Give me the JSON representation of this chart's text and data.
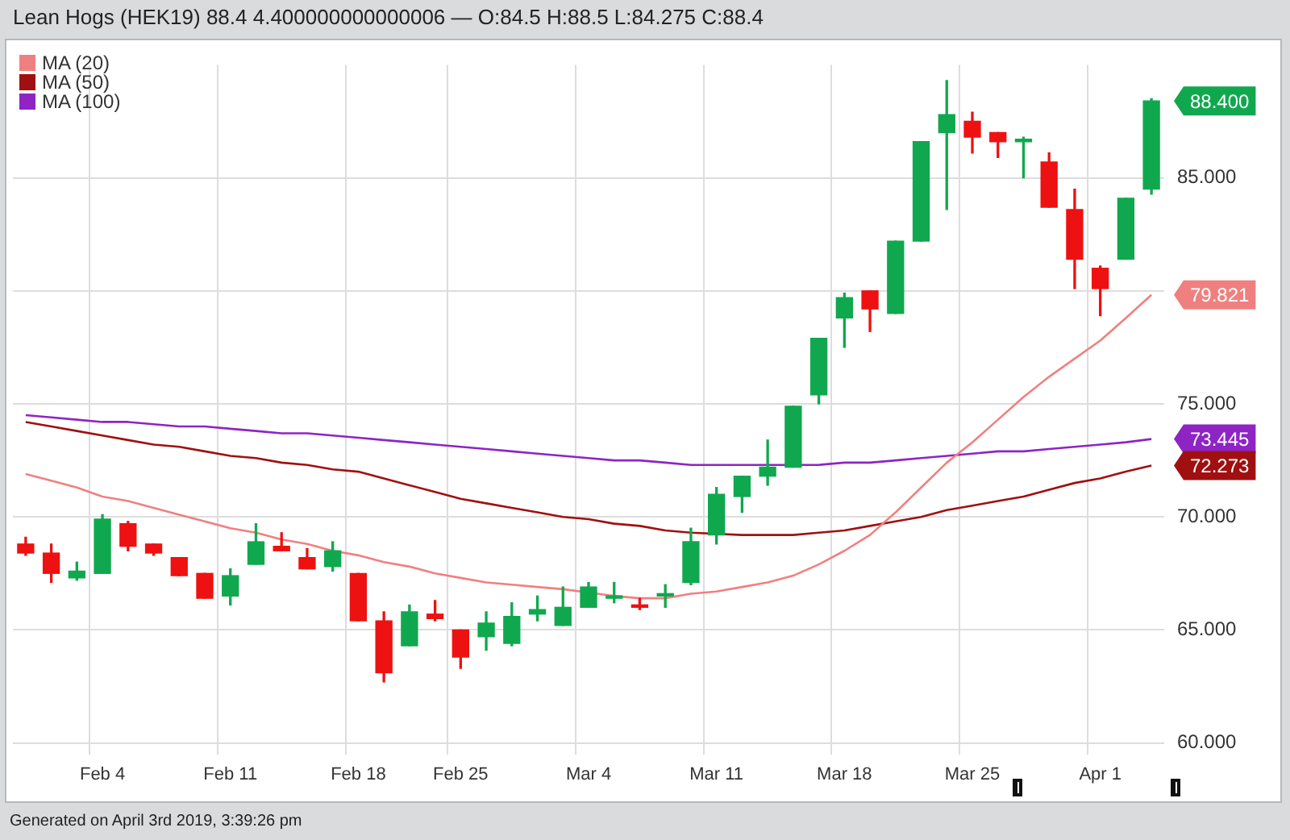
{
  "chart_data": {
    "type": "candlestick",
    "title": "Lean Hogs (HEK19) 88.4 4.400000000000006 — O:84.5 H:88.5 L:84.275 C:88.4",
    "categories": [
      null,
      null,
      null,
      "Feb 4",
      null,
      null,
      null,
      null,
      "Feb 11",
      null,
      null,
      null,
      null,
      "Feb 18",
      null,
      null,
      null,
      "Feb 25",
      null,
      null,
      null,
      null,
      "Mar 4",
      null,
      null,
      null,
      null,
      "Mar 11",
      null,
      null,
      null,
      null,
      "Mar 18",
      null,
      null,
      null,
      null,
      "Mar 25",
      null,
      null,
      null,
      null,
      "Apr 1",
      null,
      null
    ],
    "ohlc": [
      [
        68.8,
        69.1,
        68.3,
        68.4
      ],
      [
        68.4,
        68.8,
        67.1,
        67.5
      ],
      [
        67.3,
        68.0,
        67.2,
        67.6
      ],
      [
        67.5,
        70.1,
        67.5,
        69.9
      ],
      [
        69.7,
        69.8,
        68.5,
        68.7
      ],
      [
        68.8,
        68.8,
        68.3,
        68.4
      ],
      [
        68.2,
        68.2,
        67.4,
        67.4
      ],
      [
        67.5,
        67.5,
        66.4,
        66.4
      ],
      [
        66.5,
        67.7,
        66.1,
        67.4
      ],
      [
        67.9,
        69.7,
        67.9,
        68.9
      ],
      [
        68.7,
        69.3,
        68.5,
        68.5
      ],
      [
        68.2,
        68.6,
        67.7,
        67.7
      ],
      [
        67.8,
        68.9,
        67.6,
        68.5
      ],
      [
        67.5,
        67.5,
        65.4,
        65.4
      ],
      [
        65.4,
        65.8,
        62.7,
        63.1
      ],
      [
        64.3,
        66.1,
        64.3,
        65.8
      ],
      [
        65.7,
        66.3,
        65.4,
        65.5
      ],
      [
        65.0,
        65.0,
        63.3,
        63.8
      ],
      [
        64.7,
        65.8,
        64.1,
        65.3
      ],
      [
        64.4,
        66.2,
        64.3,
        65.6
      ],
      [
        65.7,
        66.5,
        65.4,
        65.9
      ],
      [
        65.2,
        66.9,
        65.2,
        66.0
      ],
      [
        66.0,
        67.1,
        66.0,
        66.9
      ],
      [
        66.4,
        67.1,
        66.2,
        66.5
      ],
      [
        66.1,
        66.4,
        65.9,
        66.0
      ],
      [
        66.5,
        67.0,
        66.0,
        66.6
      ],
      [
        67.1,
        69.5,
        67.0,
        68.9
      ],
      [
        69.2,
        71.3,
        68.8,
        71.0
      ],
      [
        70.9,
        71.8,
        70.2,
        71.8
      ],
      [
        71.8,
        73.4,
        71.4,
        72.2
      ],
      [
        72.2,
        74.9,
        72.2,
        74.9
      ],
      [
        75.4,
        77.9,
        75.0,
        77.9
      ],
      [
        78.8,
        79.9,
        77.5,
        79.7
      ],
      [
        80.0,
        80.0,
        78.2,
        79.2
      ],
      [
        79.0,
        82.2,
        79.0,
        82.2
      ],
      [
        82.2,
        86.6,
        82.2,
        86.6
      ],
      [
        87.0,
        89.3,
        83.6,
        87.8
      ],
      [
        87.5,
        87.9,
        86.1,
        86.8
      ],
      [
        87.0,
        87.0,
        85.9,
        86.6
      ],
      [
        86.6,
        86.8,
        85.0,
        86.7
      ],
      [
        85.7,
        86.1,
        83.7,
        83.7
      ],
      [
        83.6,
        84.5,
        80.1,
        81.4
      ],
      [
        81.0,
        81.1,
        78.9,
        80.1
      ],
      [
        81.4,
        84.1,
        81.4,
        84.1
      ],
      [
        84.5,
        88.5,
        84.275,
        88.4
      ]
    ],
    "colors": [
      "#ee1111",
      "#ee1111",
      "#10a84e",
      "#10a84e",
      "#ee1111",
      "#ee1111",
      "#ee1111",
      "#ee1111",
      "#10a84e",
      "#10a84e",
      "#ee1111",
      "#ee1111",
      "#10a84e",
      "#ee1111",
      "#ee1111",
      "#10a84e",
      "#ee1111",
      "#ee1111",
      "#10a84e",
      "#10a84e",
      "#10a84e",
      "#10a84e",
      "#10a84e",
      "#10a84e",
      "#ee1111",
      "#10a84e",
      "#10a84e",
      "#10a84e",
      "#10a84e",
      "#10a84e",
      "#10a84e",
      "#10a84e",
      "#10a84e",
      "#ee1111",
      "#10a84e",
      "#10a84e",
      "#10a84e",
      "#ee1111",
      "#ee1111",
      "#10a84e",
      "#ee1111",
      "#ee1111",
      "#ee1111",
      "#10a84e",
      "#10a84e"
    ],
    "series": [
      {
        "name": "MA (20)",
        "type": "line",
        "color": "#f08080",
        "values": [
          71.9,
          71.6,
          71.3,
          70.9,
          70.7,
          70.4,
          70.1,
          69.8,
          69.5,
          69.3,
          69.0,
          68.8,
          68.5,
          68.3,
          68.0,
          67.8,
          67.5,
          67.3,
          67.1,
          67.0,
          66.9,
          66.8,
          null,
          66.5,
          66.4,
          66.4,
          66.6,
          66.7,
          66.9,
          67.1,
          67.4,
          67.9,
          68.5,
          69.2,
          70.2,
          71.3,
          72.4,
          73.3,
          74.3,
          75.3,
          76.2,
          77.0,
          77.8,
          78.8,
          79.821
        ]
      },
      {
        "name": "MA (50)",
        "type": "line",
        "color": "#a01010",
        "values": [
          74.2,
          74.0,
          73.8,
          73.6,
          73.4,
          73.2,
          73.1,
          72.9,
          72.7,
          72.6,
          72.4,
          72.3,
          72.1,
          72.0,
          71.7,
          71.4,
          71.1,
          70.8,
          70.6,
          70.4,
          70.2,
          70.0,
          69.9,
          69.7,
          69.6,
          69.4,
          69.3,
          null,
          69.2,
          69.2,
          69.2,
          69.3,
          69.4,
          69.6,
          69.8,
          70.0,
          70.3,
          70.5,
          70.7,
          70.9,
          71.2,
          71.5,
          71.7,
          72.0,
          72.273
        ]
      },
      {
        "name": "MA (100)",
        "type": "line",
        "color": "#8e24c4",
        "values": [
          74.5,
          74.4,
          74.3,
          74.2,
          74.2,
          74.1,
          74.0,
          74.0,
          73.9,
          73.8,
          73.7,
          73.7,
          73.6,
          73.5,
          73.4,
          73.3,
          73.2,
          73.1,
          73.0,
          72.9,
          72.8,
          72.7,
          72.6,
          72.5,
          72.5,
          72.4,
          72.3,
          72.3,
          72.3,
          72.3,
          null,
          72.3,
          72.4,
          72.4,
          72.5,
          72.6,
          72.7,
          72.8,
          72.9,
          72.9,
          73.0,
          73.1,
          73.2,
          73.3,
          73.445
        ]
      }
    ],
    "ylim": [
      59.5,
      90
    ],
    "yticks": [
      {
        "value": 60,
        "label": "60.000"
      },
      {
        "value": 65,
        "label": "65.000"
      },
      {
        "value": 70,
        "label": "70.000"
      },
      {
        "value": 75,
        "label": "75.000"
      },
      {
        "value": 80,
        "label": null
      },
      {
        "value": 85,
        "label": "85.000"
      }
    ],
    "grid": true,
    "legend": "top left",
    "marker": "none",
    "annotations": [
      "88.400",
      "79.821",
      "73.445",
      "72.273",
      "Generated on April 3rd 2019, 3:39:26 pm"
    ]
  }
}
